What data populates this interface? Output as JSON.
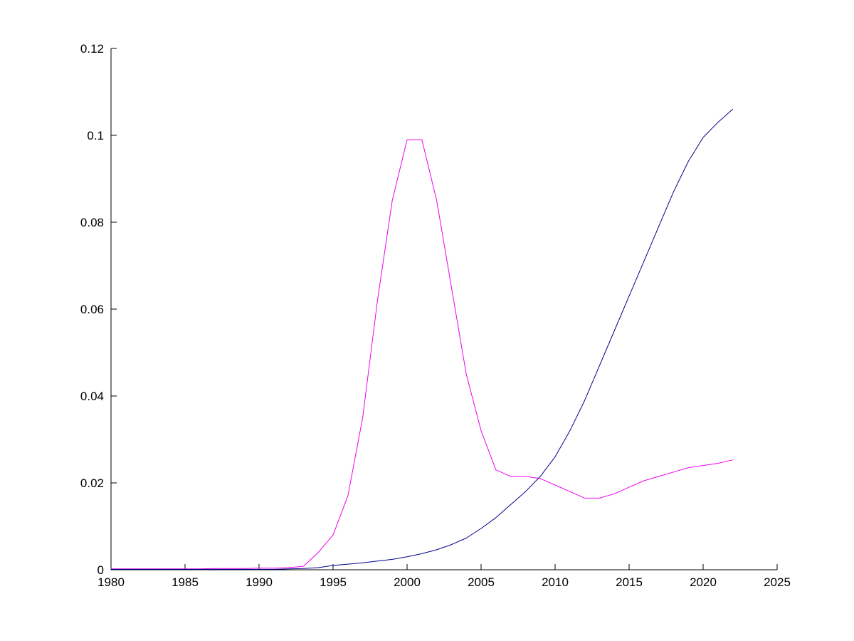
{
  "figure": {
    "background_color": "#ffffff",
    "axis_color": "#000000"
  },
  "chart_data": {
    "type": "line",
    "title": "",
    "xlabel": "",
    "ylabel": "",
    "grid": false,
    "legend": "none",
    "box": false,
    "xlim": [
      1980,
      2025
    ],
    "ylim": [
      0,
      0.12
    ],
    "x_ticks": [
      1980,
      1985,
      1990,
      1995,
      2000,
      2005,
      2010,
      2015,
      2020,
      2025
    ],
    "x_tick_labels": [
      "1980",
      "1985",
      "1990",
      "1995",
      "2000",
      "2005",
      "2010",
      "2015",
      "2020",
      "2025"
    ],
    "y_ticks": [
      0,
      0.02,
      0.04,
      0.06,
      0.08,
      0.1,
      0.12
    ],
    "y_tick_labels": [
      "0",
      "0.02",
      "0.04",
      "0.06",
      "0.08",
      "0.1",
      "0.12"
    ],
    "x": [
      1980,
      1981,
      1982,
      1983,
      1984,
      1985,
      1986,
      1987,
      1988,
      1989,
      1990,
      1991,
      1992,
      1993,
      1994,
      1995,
      1996,
      1997,
      1998,
      1999,
      2000,
      2001,
      2002,
      2003,
      2004,
      2005,
      2006,
      2007,
      2008,
      2009,
      2010,
      2011,
      2012,
      2013,
      2014,
      2015,
      2016,
      2017,
      2018,
      2019,
      2020,
      2021,
      2022
    ],
    "series": [
      {
        "name": "magenta-series",
        "color": "#ee00ee",
        "values": [
          0.0002,
          0.0002,
          0.0002,
          0.0002,
          0.0002,
          0.0002,
          0.0002,
          0.0003,
          0.0003,
          0.0003,
          0.0004,
          0.0004,
          0.0005,
          0.0008,
          0.004,
          0.008,
          0.017,
          0.035,
          0.062,
          0.085,
          0.099,
          0.099,
          0.085,
          0.065,
          0.045,
          0.032,
          0.023,
          0.0215,
          0.0215,
          0.021,
          0.0195,
          0.018,
          0.0165,
          0.0165,
          0.0175,
          0.019,
          0.0205,
          0.0215,
          0.0225,
          0.0235,
          0.024,
          0.0245,
          0.0253
        ]
      },
      {
        "name": "blue-series",
        "color": "#00008b",
        "values": [
          0.0001,
          0.0001,
          0.0001,
          0.0001,
          0.0001,
          0.0001,
          0.0001,
          0.0001,
          0.0001,
          0.0001,
          0.0001,
          0.0001,
          0.0002,
          0.0003,
          0.0005,
          0.001,
          0.0013,
          0.0016,
          0.002,
          0.0024,
          0.003,
          0.0037,
          0.0046,
          0.0058,
          0.0073,
          0.0095,
          0.012,
          0.015,
          0.018,
          0.0215,
          0.026,
          0.032,
          0.039,
          0.047,
          0.055,
          0.063,
          0.071,
          0.079,
          0.087,
          0.094,
          0.0995,
          0.103,
          0.106
        ]
      }
    ]
  }
}
